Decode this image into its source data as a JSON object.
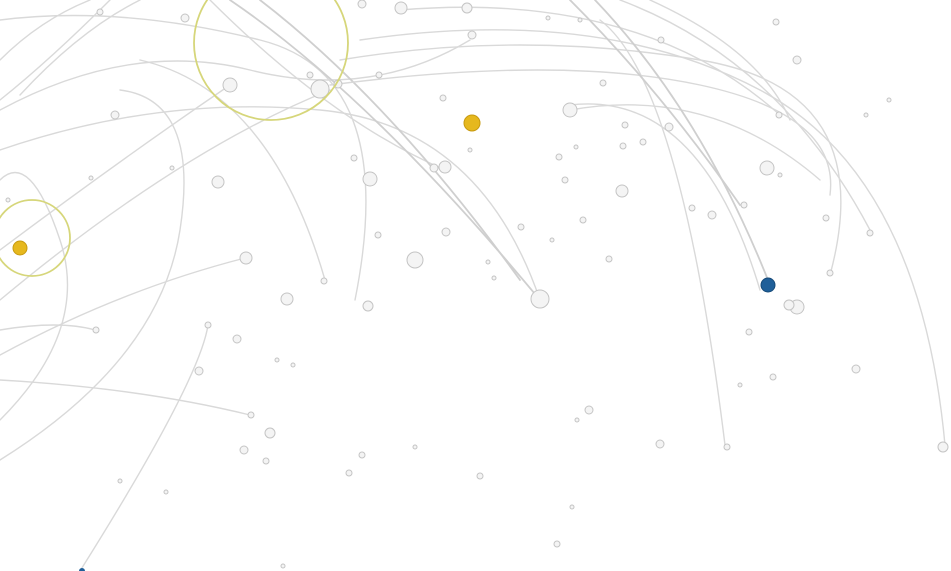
{
  "colors": {
    "background": "#ffffff",
    "trail": "#d9d9d9",
    "particle": "#f4f4f4",
    "highlight_yellow": "#e6b81e",
    "highlight_blue": "#1f5f99",
    "ring": "#d6d67a"
  },
  "icons": [
    "highlight-yellow-dot",
    "highlight-blue-dot",
    "selection-ring"
  ]
}
